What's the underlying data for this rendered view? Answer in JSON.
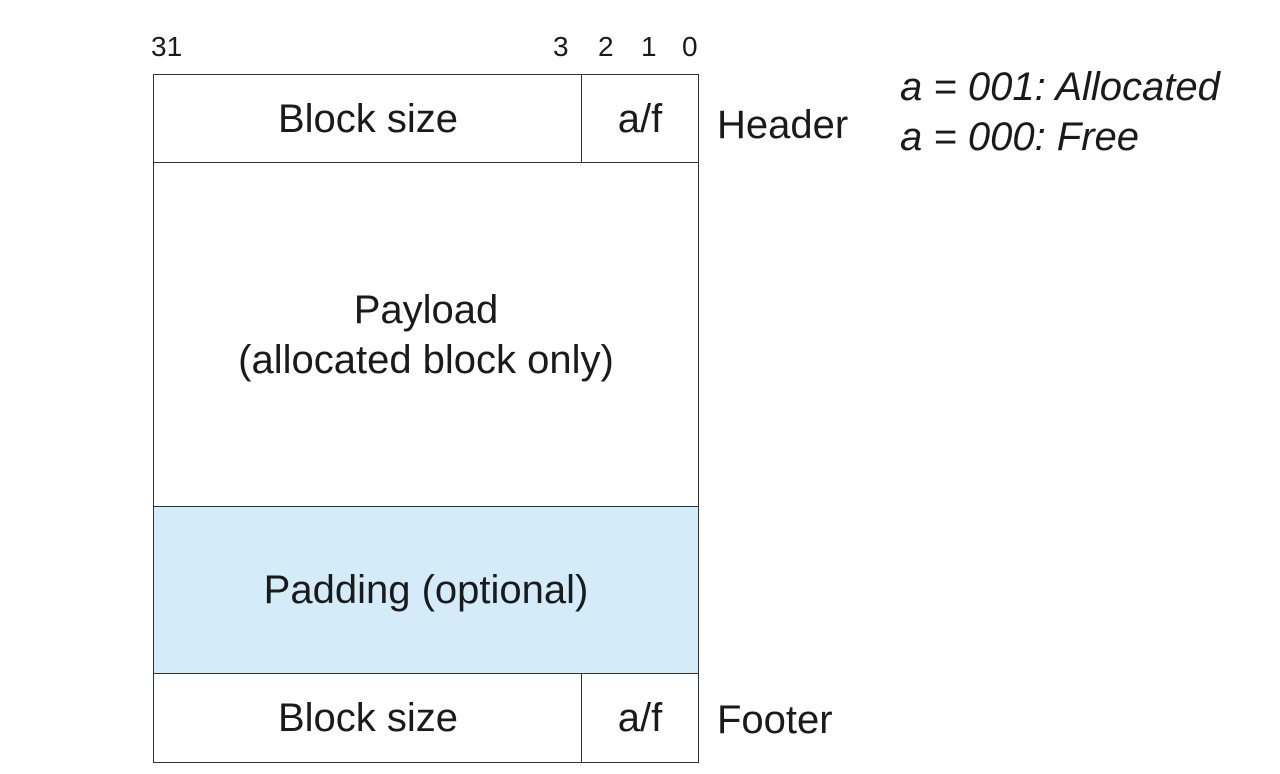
{
  "bit_labels": {
    "b31": "31",
    "b3": "3",
    "b2": "2",
    "b1": "1",
    "b0": "0"
  },
  "header": {
    "size_label": "Block size",
    "flag_label": "a/f",
    "side_label": "Header"
  },
  "payload": {
    "line1": "Payload",
    "line2": "(allocated block only)"
  },
  "padding": {
    "label": "Padding (optional)",
    "fill_color": "#d4ecfa"
  },
  "footer": {
    "size_label": "Block size",
    "flag_label": "a/f",
    "side_label": "Footer"
  },
  "legend": {
    "allocated": "a = 001: Allocated",
    "free": "a = 000: Free"
  }
}
